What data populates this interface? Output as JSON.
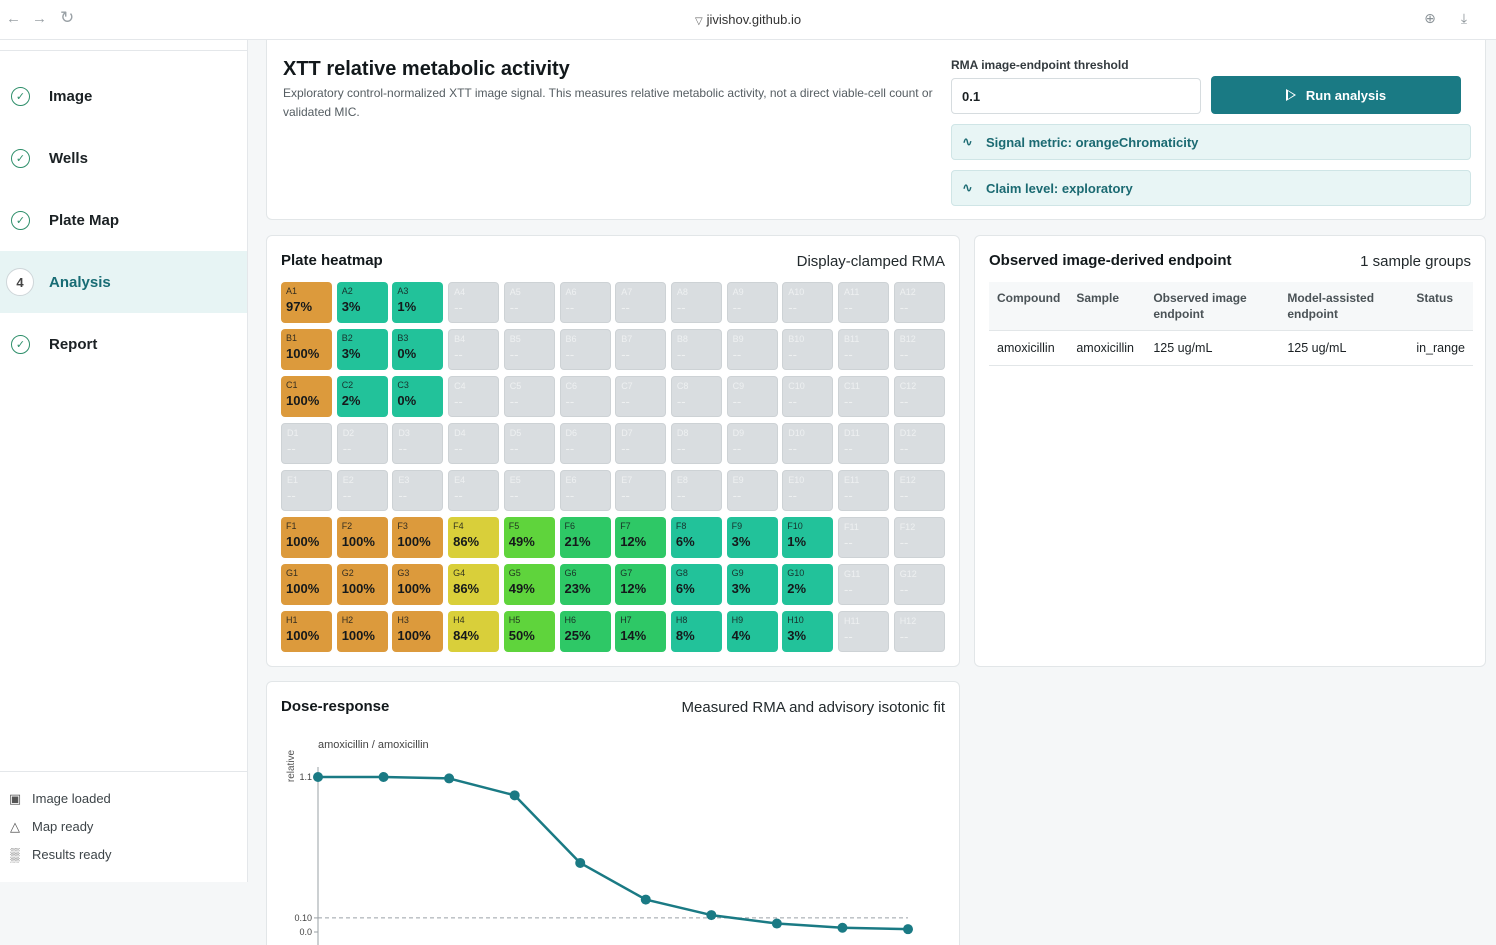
{
  "browser": {
    "url": "jivishov.github.io"
  },
  "sidebar": {
    "steps": [
      {
        "label": "Image",
        "state": "done"
      },
      {
        "label": "Wells",
        "state": "done"
      },
      {
        "label": "Plate Map",
        "state": "done"
      },
      {
        "label": "Analysis",
        "state": "active",
        "number": "4"
      },
      {
        "label": "Report",
        "state": "done"
      }
    ],
    "status": [
      {
        "label": "Image loaded",
        "icon": "image-icon"
      },
      {
        "label": "Map ready",
        "icon": "flask-icon"
      },
      {
        "label": "Results ready",
        "icon": "bar-chart-icon"
      }
    ]
  },
  "header": {
    "title": "XTT relative metabolic activity",
    "description": "Exploratory control-normalized XTT image signal. This measures relative metabolic activity, not a direct viable-cell count or validated MIC.",
    "threshold_label": "RMA image-endpoint threshold",
    "threshold_value": "0.1",
    "run_label": "Run analysis",
    "signal_metric": "Signal metric: orangeChromaticity",
    "claim_level": "Claim level: exploratory"
  },
  "heatmap": {
    "title": "Plate heatmap",
    "subtitle": "Display-clamped RMA",
    "rows": [
      "A",
      "B",
      "C",
      "D",
      "E",
      "F",
      "G",
      "H"
    ],
    "empty_value": "--",
    "values": {
      "A": [
        "97%",
        "3%",
        "1%",
        null,
        null,
        null,
        null,
        null,
        null,
        null,
        null,
        null
      ],
      "B": [
        "100%",
        "3%",
        "0%",
        null,
        null,
        null,
        null,
        null,
        null,
        null,
        null,
        null
      ],
      "C": [
        "100%",
        "2%",
        "0%",
        null,
        null,
        null,
        null,
        null,
        null,
        null,
        null,
        null
      ],
      "D": [
        null,
        null,
        null,
        null,
        null,
        null,
        null,
        null,
        null,
        null,
        null,
        null
      ],
      "E": [
        null,
        null,
        null,
        null,
        null,
        null,
        null,
        null,
        null,
        null,
        null,
        null
      ],
      "F": [
        "100%",
        "100%",
        "100%",
        "86%",
        "49%",
        "21%",
        "12%",
        "6%",
        "3%",
        "1%",
        null,
        null
      ],
      "G": [
        "100%",
        "100%",
        "100%",
        "86%",
        "49%",
        "23%",
        "12%",
        "6%",
        "3%",
        "2%",
        null,
        null
      ],
      "H": [
        "100%",
        "100%",
        "100%",
        "84%",
        "50%",
        "25%",
        "14%",
        "8%",
        "4%",
        "3%",
        null,
        null
      ]
    },
    "colors": {
      "high": "#dc9a3c",
      "mid_high": "#d9cf3a",
      "mid": "#5fd43c",
      "mid_low": "#2ec866",
      "low": "#22c29a",
      "empty": "#d9dde0"
    }
  },
  "endpoint": {
    "title": "Observed image-derived endpoint",
    "count": "1 sample groups",
    "columns": [
      "Compound",
      "Sample",
      "Observed image endpoint",
      "Model-assisted endpoint",
      "Status"
    ],
    "rows": [
      [
        "amoxicillin",
        "amoxicillin",
        "125 ug/mL",
        "125 ug/mL",
        "in_range"
      ]
    ]
  },
  "dose": {
    "title": "Dose-response",
    "subtitle": "Measured RMA and advisory isotonic fit"
  },
  "chart_data": {
    "type": "line",
    "series": [
      {
        "name": "amoxicillin / amoxicillin",
        "values": [
          1.1,
          1.1,
          1.09,
          0.97,
          0.49,
          0.23,
          0.12,
          0.06,
          0.03,
          0.02
        ]
      }
    ],
    "x": [
      1,
      2,
      3,
      4,
      5,
      6,
      7,
      8,
      9,
      10
    ],
    "ylabel": "relative",
    "yticks": [
      "0.0",
      "0.10",
      "1.1"
    ],
    "ylim": [
      0,
      1.1
    ],
    "threshold": 0.1,
    "color": "#1a7a84"
  }
}
